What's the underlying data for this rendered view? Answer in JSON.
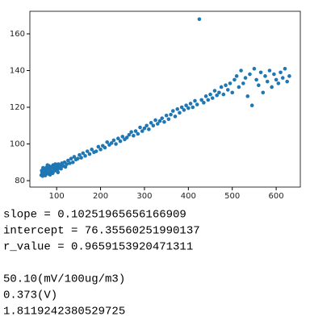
{
  "chart_data": {
    "type": "scatter",
    "color": "#1f77b4",
    "x": [
      65,
      67,
      68,
      70,
      72,
      73,
      75,
      76,
      78,
      80,
      81,
      83,
      84,
      86,
      88,
      89,
      91,
      92,
      94,
      96,
      97,
      99,
      100,
      102,
      104,
      106,
      108,
      110,
      112,
      115,
      118,
      120,
      123,
      126,
      130,
      133,
      137,
      140,
      144,
      148,
      152,
      156,
      160,
      165,
      170,
      175,
      180,
      185,
      190,
      195,
      200,
      205,
      210,
      215,
      220,
      225,
      230,
      235,
      240,
      245,
      250,
      255,
      260,
      265,
      270,
      275,
      280,
      285,
      290,
      295,
      300,
      305,
      310,
      315,
      320,
      325,
      330,
      335,
      340,
      345,
      350,
      355,
      360,
      365,
      370,
      375,
      380,
      385,
      390,
      395,
      400,
      405,
      410,
      415,
      420,
      425,
      430,
      435,
      440,
      445,
      450,
      455,
      460,
      465,
      470,
      475,
      480,
      485,
      490,
      495,
      500,
      505,
      510,
      515,
      520,
      525,
      530,
      535,
      540,
      545,
      550,
      555,
      560,
      565,
      570,
      575,
      580,
      585,
      590,
      595,
      600,
      605,
      610,
      615,
      620,
      625,
      630,
      66,
      69,
      74,
      79,
      85,
      93,
      98,
      103
    ],
    "values": [
      83,
      84.5,
      82.5,
      85,
      83.5,
      86,
      84,
      87,
      85,
      83.8,
      86.5,
      88,
      84.5,
      86,
      87.5,
      85,
      84,
      88.5,
      86.5,
      87,
      89,
      85.5,
      87.8,
      86,
      89,
      87,
      88,
      86.5,
      89.5,
      88,
      90,
      87.5,
      89,
      91,
      89.5,
      92,
      90,
      93,
      91.5,
      92,
      94,
      92.5,
      95,
      93.5,
      96,
      94.5,
      97,
      95.5,
      96,
      98.5,
      97,
      99,
      98,
      101,
      99.5,
      100.5,
      102,
      100,
      103,
      101.5,
      104,
      102.5,
      103.5,
      105,
      106.5,
      104.5,
      107,
      105.5,
      109,
      107,
      108.5,
      110,
      108,
      111.5,
      110,
      113,
      111,
      112.5,
      114,
      112,
      115.5,
      113.5,
      116,
      118,
      115,
      119,
      117,
      120,
      118.5,
      121,
      119.5,
      122,
      120,
      123.5,
      121.5,
      168,
      124,
      122.5,
      126,
      124,
      127,
      125,
      129,
      126.5,
      128,
      131,
      127,
      132,
      129.5,
      133,
      128,
      135,
      137,
      131,
      140,
      133,
      136,
      126,
      138,
      121,
      141,
      135,
      132,
      139,
      128,
      137,
      134,
      140,
      131,
      138,
      135,
      133,
      139,
      136,
      141,
      134,
      137,
      85.5,
      87,
      82.8,
      88.5,
      83.2,
      85,
      88,
      84.5
    ],
    "xlim": [
      39,
      655
    ],
    "ylim": [
      76.5,
      172.3
    ],
    "xticks": [
      100,
      200,
      300,
      400,
      500,
      600
    ],
    "yticks": [
      80,
      100,
      120,
      140,
      160
    ]
  },
  "output": {
    "blocks": [
      [
        "slope = 0.10251965656166909",
        "intercept = 76.35560251990137",
        "r_value = 0.9659153920471311"
      ],
      [
        "50.10(mV/100ug/m3)",
        "0.373(V)",
        "1.8119242380529725"
      ]
    ]
  }
}
